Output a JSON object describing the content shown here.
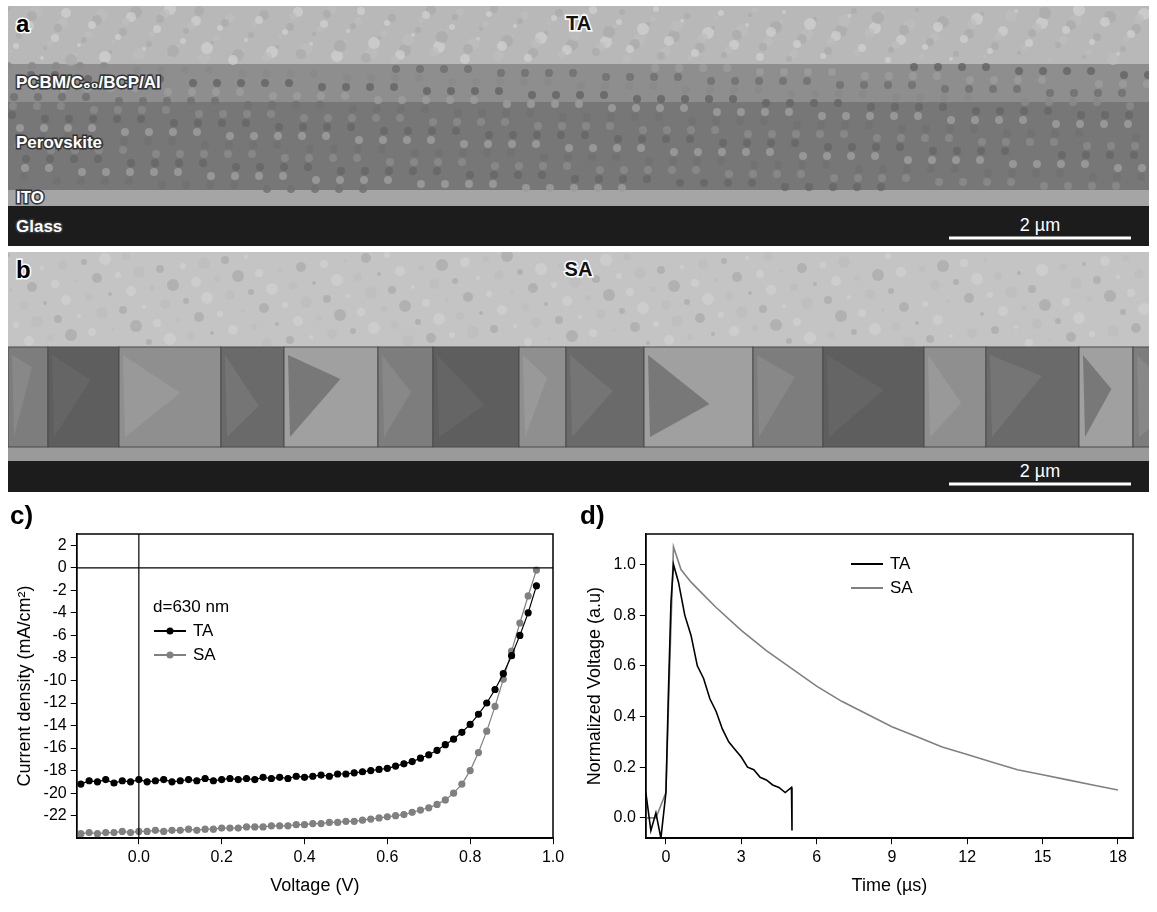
{
  "micrographs": [
    {
      "panel": "a",
      "title": "TA",
      "layers": [
        "PCBM/C₆₀/BCP/Al",
        "Perovskite",
        "ITO",
        "Glass"
      ],
      "scale_bar": "2 µm"
    },
    {
      "panel": "b",
      "title": "SA",
      "scale_bar": "2 µm"
    }
  ],
  "chart_data": [
    {
      "panel": "c)",
      "type": "line",
      "x_label": "Voltage (V)",
      "y_label": "Current density (mA/cm²)",
      "annotation": "d=630 nm",
      "x": [
        -0.14,
        -0.12,
        -0.1,
        -0.08,
        -0.06,
        -0.04,
        -0.02,
        0,
        0.02,
        0.04,
        0.06,
        0.08,
        0.1,
        0.12,
        0.14,
        0.16,
        0.18,
        0.2,
        0.22,
        0.24,
        0.26,
        0.28,
        0.3,
        0.32,
        0.34,
        0.36,
        0.38,
        0.4,
        0.42,
        0.44,
        0.46,
        0.48,
        0.5,
        0.52,
        0.54,
        0.56,
        0.58,
        0.6,
        0.62,
        0.64,
        0.66,
        0.68,
        0.7,
        0.72,
        0.74,
        0.76,
        0.78,
        0.8,
        0.82,
        0.84,
        0.86,
        0.88,
        0.9,
        0.92,
        0.94,
        0.96
      ],
      "series": [
        {
          "name": "TA",
          "color": "#000000",
          "marker": "circle",
          "values": [
            -19.2,
            -18.9,
            -19.0,
            -18.8,
            -19.1,
            -18.9,
            -19.0,
            -18.8,
            -19.0,
            -18.9,
            -18.8,
            -19.0,
            -18.9,
            -18.8,
            -18.9,
            -18.7,
            -18.9,
            -18.8,
            -18.7,
            -18.8,
            -18.7,
            -18.8,
            -18.6,
            -18.7,
            -18.6,
            -18.7,
            -18.5,
            -18.6,
            -18.5,
            -18.4,
            -18.5,
            -18.3,
            -18.3,
            -18.2,
            -18.1,
            -18.0,
            -17.9,
            -17.8,
            -17.6,
            -17.4,
            -17.2,
            -16.9,
            -16.6,
            -16.2,
            -15.7,
            -15.2,
            -14.6,
            -13.9,
            -13.0,
            -12.0,
            -10.8,
            -9.4,
            -7.8,
            -6.0,
            -4.0,
            -1.6
          ]
        },
        {
          "name": "SA",
          "color": "#808080",
          "marker": "circle",
          "values": [
            -23.6,
            -23.5,
            -23.6,
            -23.5,
            -23.5,
            -23.4,
            -23.5,
            -23.4,
            -23.4,
            -23.3,
            -23.4,
            -23.3,
            -23.3,
            -23.2,
            -23.3,
            -23.2,
            -23.2,
            -23.1,
            -23.1,
            -23.1,
            -23.0,
            -23.0,
            -23.0,
            -22.9,
            -22.9,
            -22.9,
            -22.8,
            -22.8,
            -22.7,
            -22.7,
            -22.6,
            -22.6,
            -22.5,
            -22.5,
            -22.4,
            -22.3,
            -22.2,
            -22.1,
            -22.0,
            -21.9,
            -21.7,
            -21.5,
            -21.3,
            -21.0,
            -20.6,
            -20.0,
            -19.2,
            -18.0,
            -16.4,
            -14.5,
            -12.3,
            -9.9,
            -7.4,
            -4.9,
            -2.5,
            -0.2
          ]
        }
      ],
      "xlim": [
        -0.15,
        1.0
      ],
      "xticks": [
        {
          "value": 0,
          "label": "0.0"
        },
        0.2,
        0.4,
        0.6,
        0.8,
        {
          "value": 1,
          "label": "1.0"
        }
      ],
      "ylim": [
        -24,
        3
      ],
      "yticks": [
        -22,
        -20,
        -18,
        -16,
        -14,
        -12,
        -10,
        -8,
        -6,
        -4,
        -2,
        0,
        2
      ],
      "grid": false,
      "legend": "upper left"
    },
    {
      "panel": "d)",
      "type": "line",
      "x_label": "Time (µs)",
      "y_label": "Normalized Voltage (a.u)",
      "series": [
        {
          "name": "TA",
          "color": "#000000",
          "marker": "none",
          "x": [
            -0.8,
            -0.6,
            -0.4,
            -0.2,
            0,
            0.1,
            0.2,
            0.3,
            0.5,
            0.75,
            1.0,
            1.25,
            1.5,
            1.75,
            2.0,
            2.25,
            2.5,
            2.75,
            3.0,
            3.25,
            3.5,
            3.75,
            4.0,
            4.25,
            4.5,
            4.75,
            5.0,
            5.02
          ],
          "values": [
            0.1,
            -0.05,
            0.02,
            -0.08,
            0.1,
            0.5,
            0.85,
            1.0,
            0.93,
            0.8,
            0.72,
            0.6,
            0.55,
            0.47,
            0.42,
            0.35,
            0.3,
            0.27,
            0.24,
            0.2,
            0.19,
            0.16,
            0.15,
            0.13,
            0.12,
            0.1,
            0.12,
            -0.05
          ]
        },
        {
          "name": "SA",
          "color": "#808080",
          "marker": "none",
          "x": [
            -0.8,
            -0.4,
            0,
            0.15,
            0.3,
            0.6,
            1,
            1.5,
            2,
            3,
            4,
            5,
            6,
            7,
            8,
            9,
            10,
            11,
            12,
            13,
            14,
            15,
            16,
            17,
            18
          ],
          "values": [
            0,
            0,
            0.1,
            0.6,
            1.07,
            0.98,
            0.93,
            0.88,
            0.83,
            0.74,
            0.66,
            0.59,
            0.52,
            0.46,
            0.41,
            0.36,
            0.32,
            0.28,
            0.25,
            0.22,
            0.19,
            0.17,
            0.15,
            0.13,
            0.11
          ]
        }
      ],
      "xlim": [
        -0.8,
        18.6
      ],
      "xticks": [
        0,
        3,
        6,
        9,
        12,
        15,
        18
      ],
      "ylim": [
        -0.08,
        1.12
      ],
      "yticks": [
        {
          "value": 0,
          "label": "0.0"
        },
        0.2,
        0.4,
        0.6,
        0.8,
        {
          "value": 1,
          "label": "1.0"
        }
      ],
      "grid": false,
      "legend": "upper center"
    }
  ]
}
